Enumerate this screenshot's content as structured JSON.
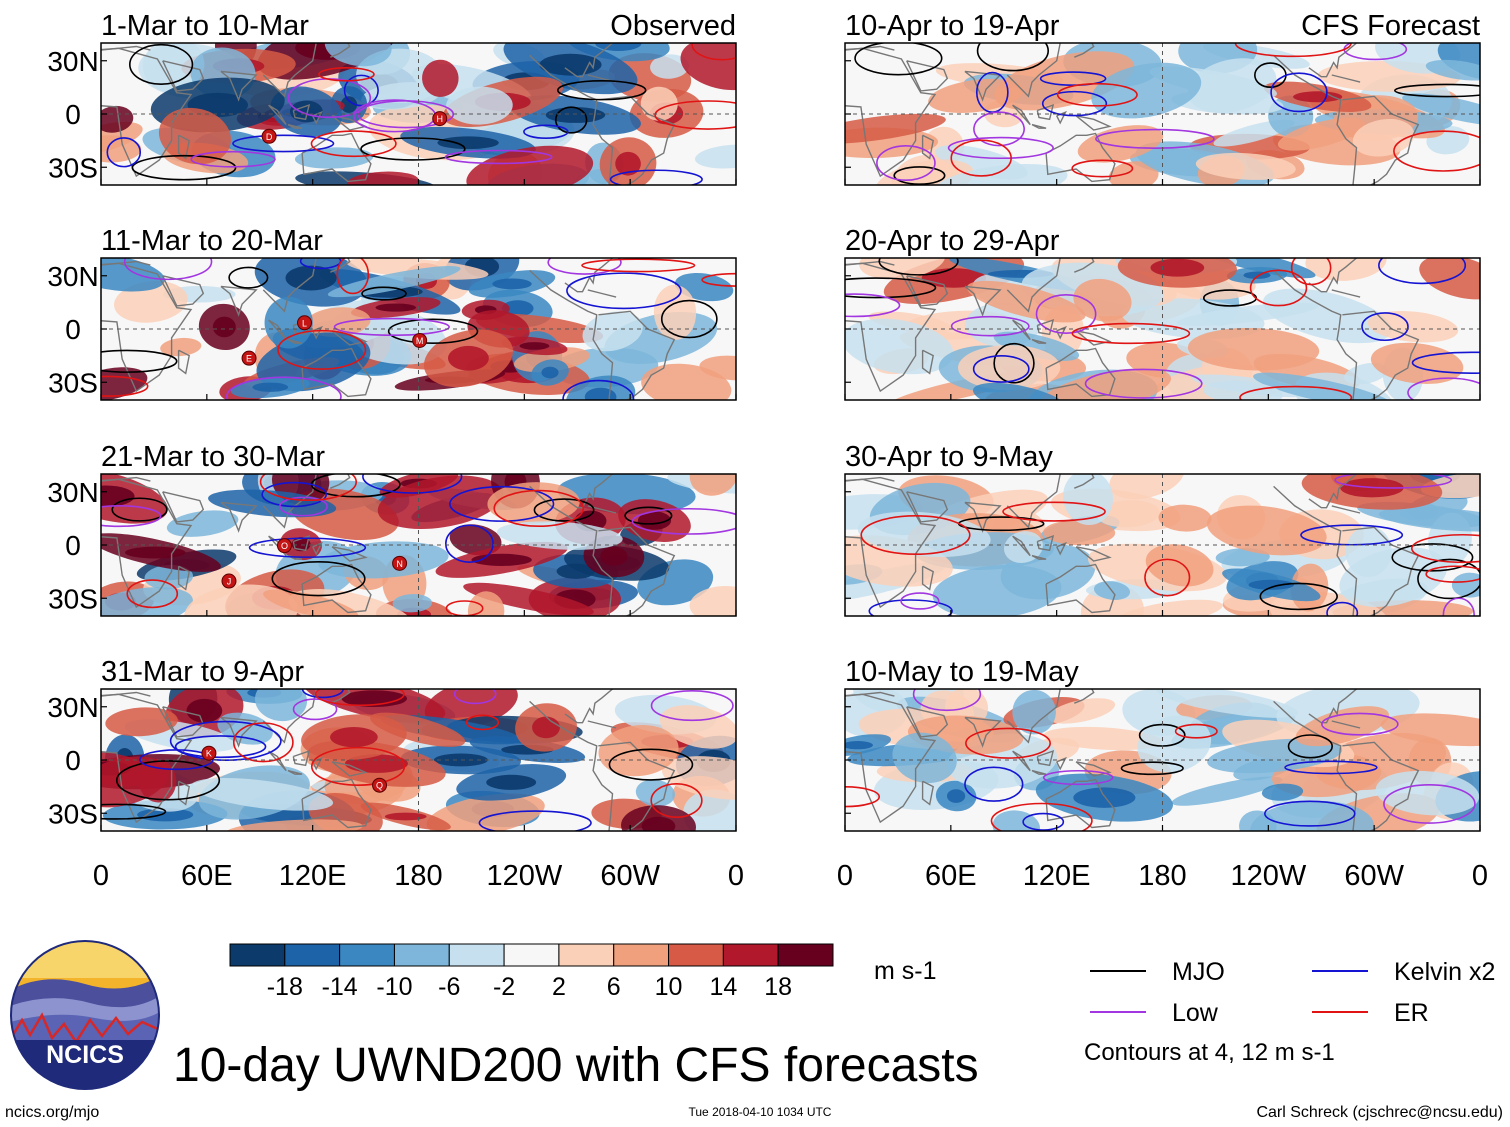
{
  "chart_data": {
    "type": "heatmap",
    "title": "10-day UWND200 with CFS forecasts",
    "variable": "200 hPa zonal wind anomaly",
    "units": "m s-1",
    "x_tick_labels": [
      "0",
      "60E",
      "120E",
      "180",
      "120W",
      "60W",
      "0"
    ],
    "y_tick_labels": [
      "30N",
      "0",
      "30S"
    ],
    "xlim": [
      0,
      360
    ],
    "ylim": [
      -40,
      40
    ],
    "panels": [
      {
        "key": "p1",
        "column": "observed",
        "row": 0,
        "period": "1-Mar to 10-Mar",
        "tag": "Observed",
        "markers": [
          "D",
          "H"
        ]
      },
      {
        "key": "p2",
        "column": "observed",
        "row": 1,
        "period": "11-Mar to 20-Mar",
        "tag": "",
        "markers": [
          "E",
          "M",
          "L"
        ]
      },
      {
        "key": "p3",
        "column": "observed",
        "row": 2,
        "period": "21-Mar to 30-Mar",
        "tag": "",
        "markers": [
          "J",
          "N",
          "O"
        ]
      },
      {
        "key": "p4",
        "column": "observed",
        "row": 3,
        "period": "31-Mar to 9-Apr",
        "tag": "",
        "markers": [
          "K",
          "Q"
        ]
      },
      {
        "key": "p5",
        "column": "forecast",
        "row": 0,
        "period": "10-Apr to 19-Apr",
        "tag": "CFS Forecast",
        "markers": []
      },
      {
        "key": "p6",
        "column": "forecast",
        "row": 1,
        "period": "20-Apr to 29-Apr",
        "tag": "",
        "markers": []
      },
      {
        "key": "p7",
        "column": "forecast",
        "row": 2,
        "period": "30-Apr to 9-May",
        "tag": "",
        "markers": []
      },
      {
        "key": "p8",
        "column": "forecast",
        "row": 3,
        "period": "10-May to 19-May",
        "tag": "",
        "markers": []
      }
    ],
    "colorbar": {
      "labels": [
        "-18",
        "-14",
        "-10",
        "-6",
        "-2",
        "2",
        "6",
        "10",
        "14",
        "18"
      ],
      "colors": [
        "#0b3a6b",
        "#1d63a8",
        "#3a87c2",
        "#7db6da",
        "#c7e0ef",
        "#f7f7f7",
        "#fbd0b9",
        "#f1a07e",
        "#d65a45",
        "#b2182b",
        "#67001f"
      ],
      "units": "m s-1"
    },
    "legend": [
      {
        "label": "MJO",
        "color": "#000000"
      },
      {
        "label": "Kelvin x2",
        "color": "#1414d2"
      },
      {
        "label": "Low",
        "color": "#a236e0"
      },
      {
        "label": "ER",
        "color": "#e01414"
      }
    ],
    "contour_note": "Contours at 4, 12 m s-1",
    "continent_color": "#777777"
  },
  "footer": {
    "site": "ncics.org/mjo",
    "timestamp": "Tue 2018-04-10 1034 UTC",
    "credit": "Carl Schreck (cjschrec@ncsu.edu)"
  },
  "logo": {
    "text": "NCICS"
  }
}
